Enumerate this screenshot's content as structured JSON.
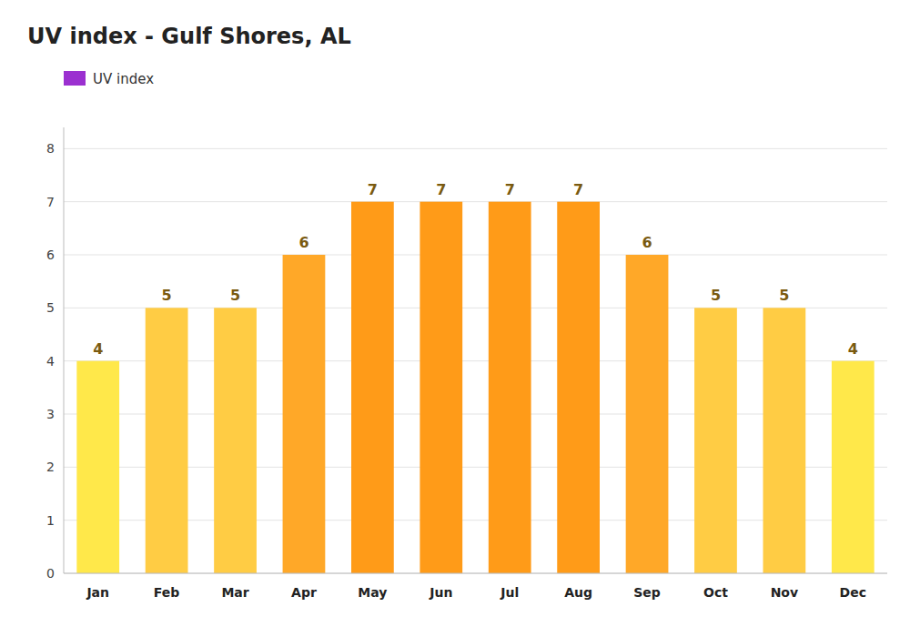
{
  "chart_data": {
    "type": "bar",
    "title": "UV index - Gulf Shores, AL",
    "categories": [
      "Jan",
      "Feb",
      "Mar",
      "Apr",
      "May",
      "Jun",
      "Jul",
      "Aug",
      "Sep",
      "Oct",
      "Nov",
      "Dec"
    ],
    "series": [
      {
        "name": "UV index",
        "color": "#9b30d0",
        "colors": [
          "#FFE84A",
          "#FFCC44",
          "#FFCC44",
          "#FFA828",
          "#FF9B18",
          "#FF9B18",
          "#FF9B18",
          "#FF9B18",
          "#FFA828",
          "#FFCC44",
          "#FFCC44",
          "#FFE84A"
        ],
        "values": [
          4,
          5,
          5,
          6,
          7,
          7,
          7,
          7,
          6,
          5,
          5,
          4
        ]
      }
    ],
    "ylim": [
      0,
      8.4
    ],
    "yticks": [
      0,
      1,
      2,
      3,
      4,
      5,
      6,
      7,
      8
    ],
    "grid": true,
    "legend": "upper left",
    "data_labels": true
  }
}
